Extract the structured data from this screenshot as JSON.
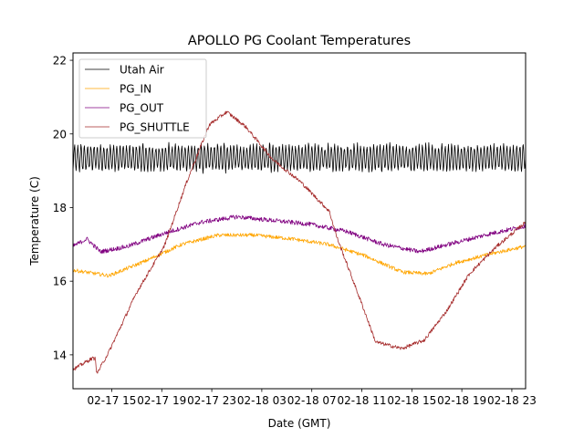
{
  "chart_data": {
    "type": "line",
    "title": "APOLLO PG Coolant Temperatures",
    "xlabel": "Date (GMT)",
    "ylabel": "Temperature (C)",
    "x_units": "hours since 02-17 00:00 GMT",
    "xlim": [
      11.9,
      48.1
    ],
    "ylim": [
      13.08,
      22.2
    ],
    "grid": false,
    "legend_position": "top-left",
    "x_ticks": [
      {
        "value": 15,
        "label": "02-17 15"
      },
      {
        "value": 19,
        "label": "02-17 19"
      },
      {
        "value": 23,
        "label": "02-17 23"
      },
      {
        "value": 27,
        "label": "02-18 03"
      },
      {
        "value": 31,
        "label": "02-18 07"
      },
      {
        "value": 35,
        "label": "02-18 11"
      },
      {
        "value": 39,
        "label": "02-18 15"
      },
      {
        "value": 43,
        "label": "02-18 19"
      },
      {
        "value": 47,
        "label": "02-18 23"
      }
    ],
    "y_ticks": [
      {
        "value": 14,
        "label": "14"
      },
      {
        "value": 16,
        "label": "16"
      },
      {
        "value": 18,
        "label": "18"
      },
      {
        "value": 20,
        "label": "20"
      },
      {
        "value": 22,
        "label": "22"
      }
    ],
    "series": [
      {
        "name": "Utah Air",
        "color": "#000000",
        "kind": "oscillating",
        "mean": 19.35,
        "amplitude": 0.33,
        "period_hours": 0.26,
        "x_range": [
          11.9,
          48.1
        ]
      },
      {
        "name": "PG_IN",
        "color": "#ffa500",
        "noise": 0.05,
        "points": [
          [
            11.9,
            16.3
          ],
          [
            14.8,
            16.15
          ],
          [
            17.7,
            16.55
          ],
          [
            20.6,
            17.0
          ],
          [
            23.5,
            17.25
          ],
          [
            26.4,
            17.25
          ],
          [
            29.4,
            17.15
          ],
          [
            32.3,
            17.0
          ],
          [
            35.2,
            16.7
          ],
          [
            38.2,
            16.25
          ],
          [
            40.3,
            16.2
          ],
          [
            42.5,
            16.5
          ],
          [
            45.4,
            16.75
          ],
          [
            48.1,
            16.95
          ]
        ]
      },
      {
        "name": "PG_OUT",
        "color": "#800080",
        "noise": 0.06,
        "points": [
          [
            11.9,
            16.95
          ],
          [
            13.0,
            17.15
          ],
          [
            14.1,
            16.8
          ],
          [
            16.3,
            16.95
          ],
          [
            19.2,
            17.3
          ],
          [
            22.1,
            17.6
          ],
          [
            25.0,
            17.75
          ],
          [
            27.9,
            17.65
          ],
          [
            30.8,
            17.55
          ],
          [
            33.8,
            17.35
          ],
          [
            36.7,
            17.0
          ],
          [
            39.6,
            16.8
          ],
          [
            42.5,
            17.05
          ],
          [
            45.4,
            17.3
          ],
          [
            48.1,
            17.5
          ]
        ]
      },
      {
        "name": "PG_SHUTTLE",
        "color": "#a52a2a",
        "noise": 0.05,
        "points": [
          [
            11.9,
            13.6
          ],
          [
            13.4,
            13.9
          ],
          [
            13.7,
            13.9
          ],
          [
            13.8,
            13.48
          ],
          [
            14.8,
            14.1
          ],
          [
            17.0,
            15.7
          ],
          [
            19.2,
            16.95
          ],
          [
            21.0,
            18.7
          ],
          [
            22.8,
            20.25
          ],
          [
            24.2,
            20.6
          ],
          [
            25.7,
            20.2
          ],
          [
            27.9,
            19.3
          ],
          [
            30.1,
            18.7
          ],
          [
            32.4,
            17.9
          ],
          [
            33.0,
            17.2
          ],
          [
            34.1,
            16.2
          ],
          [
            35.2,
            15.2
          ],
          [
            36.1,
            14.35
          ],
          [
            38.2,
            14.17
          ],
          [
            40.0,
            14.4
          ],
          [
            41.8,
            15.2
          ],
          [
            43.6,
            16.2
          ],
          [
            45.8,
            16.95
          ],
          [
            48.1,
            17.6
          ]
        ]
      }
    ]
  }
}
